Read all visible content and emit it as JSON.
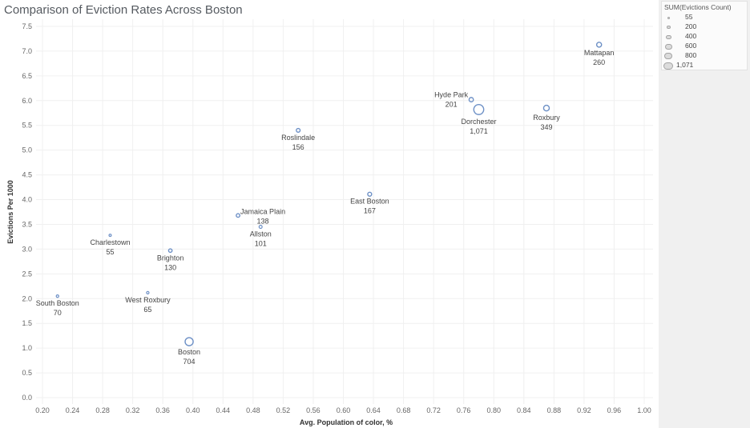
{
  "title": "Comparison of Eviction Rates Across Boston",
  "legend": {
    "title": "SUM(Evictions Count)",
    "items": [
      "55",
      "200",
      "400",
      "600",
      "800",
      "1,071"
    ]
  },
  "colors": {
    "point_stroke": "#6d90c6",
    "grid": "#f0f0f0",
    "text": "#555555",
    "legend_panel": "#f0f0f0"
  },
  "chart_data": {
    "type": "scatter",
    "title": "Comparison of Eviction Rates Across Boston",
    "xlabel": "Avg. Population of color, %",
    "ylabel": "Evictions Per 1000",
    "xlim": [
      0.2,
      1.0
    ],
    "ylim": [
      0,
      7.5
    ],
    "x_ticks": [
      "0.20",
      "0.24",
      "0.28",
      "0.32",
      "0.36",
      "0.40",
      "0.44",
      "0.48",
      "0.52",
      "0.56",
      "0.60",
      "0.64",
      "0.68",
      "0.72",
      "0.76",
      "0.80",
      "0.84",
      "0.88",
      "0.92",
      "0.96",
      "1.00"
    ],
    "y_ticks": [
      "0.0",
      "0.5",
      "1.0",
      "1.5",
      "2.0",
      "2.5",
      "3.0",
      "3.5",
      "4.0",
      "4.5",
      "5.0",
      "5.5",
      "6.0",
      "6.5",
      "7.0",
      "7.5"
    ],
    "size_legend": "SUM(Evictions Count)",
    "grid": true,
    "points": [
      {
        "name": "South Boston",
        "count_label": "70",
        "x": 0.22,
        "y": 2.05,
        "size": 70
      },
      {
        "name": "Charlestown",
        "count_label": "55",
        "x": 0.29,
        "y": 3.28,
        "size": 55
      },
      {
        "name": "West Roxbury",
        "count_label": "65",
        "x": 0.34,
        "y": 2.12,
        "size": 65
      },
      {
        "name": "Brighton",
        "count_label": "130",
        "x": 0.37,
        "y": 2.97,
        "size": 130
      },
      {
        "name": "Boston",
        "count_label": "704",
        "x": 0.395,
        "y": 1.13,
        "size": 704
      },
      {
        "name": "Jamaica Plain",
        "count_label": "138",
        "x": 0.46,
        "y": 3.68,
        "size": 138
      },
      {
        "name": "Allston",
        "count_label": "101",
        "x": 0.49,
        "y": 3.45,
        "size": 101
      },
      {
        "name": "Roslindale",
        "count_label": "156",
        "x": 0.54,
        "y": 5.4,
        "size": 156
      },
      {
        "name": "East Boston",
        "count_label": "167",
        "x": 0.635,
        "y": 4.11,
        "size": 167
      },
      {
        "name": "Hyde Park",
        "count_label": "201",
        "x": 0.77,
        "y": 6.02,
        "size": 201
      },
      {
        "name": "Dorchester",
        "count_label": "1,071",
        "x": 0.78,
        "y": 5.82,
        "size": 1071
      },
      {
        "name": "Roxbury",
        "count_label": "349",
        "x": 0.87,
        "y": 5.85,
        "size": 349
      },
      {
        "name": "Mattapan",
        "count_label": "260",
        "x": 0.94,
        "y": 7.13,
        "size": 260
      }
    ]
  }
}
